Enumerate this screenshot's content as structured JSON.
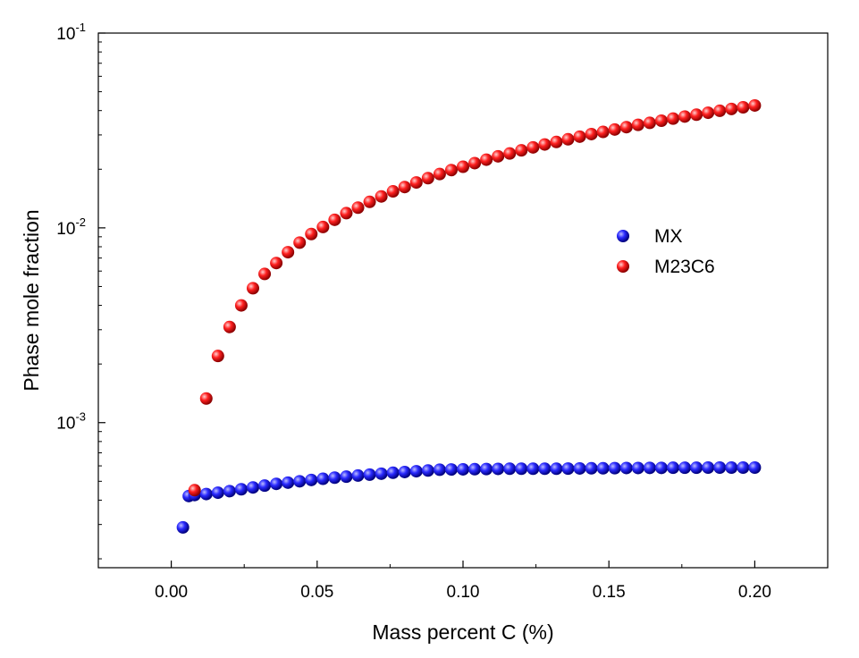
{
  "chart_data": {
    "type": "scatter",
    "xlabel": "Mass percent C (%)",
    "ylabel": "Phase mole fraction",
    "xlim": [
      -0.025,
      0.225
    ],
    "ylim": [
      0.00018,
      0.1
    ],
    "yscale": "log",
    "grid": false,
    "legend_position": "right-center",
    "x_ticks": [
      0.0,
      0.05,
      0.1,
      0.15,
      0.2
    ],
    "x_tick_labels": [
      "0.00",
      "0.05",
      "0.10",
      "0.15",
      "0.20"
    ],
    "y_ticks": [
      0.001,
      0.01,
      0.1
    ],
    "y_tick_labels": [
      {
        "base": "10",
        "exp": "-3"
      },
      {
        "base": "10",
        "exp": "-2"
      },
      {
        "base": "10",
        "exp": "-1"
      }
    ],
    "series": [
      {
        "name": "MX",
        "color": "#1010e0",
        "points": [
          [
            0.004,
            0.00029
          ],
          [
            0.006,
            0.00042
          ],
          [
            0.008,
            0.000425
          ],
          [
            0.012,
            0.00043
          ],
          [
            0.016,
            0.000437
          ],
          [
            0.02,
            0.000445
          ],
          [
            0.024,
            0.000455
          ],
          [
            0.028,
            0.000465
          ],
          [
            0.032,
            0.000475
          ],
          [
            0.036,
            0.000485
          ],
          [
            0.04,
            0.000492
          ],
          [
            0.044,
            0.0005
          ],
          [
            0.048,
            0.000508
          ],
          [
            0.052,
            0.000515
          ],
          [
            0.056,
            0.000522
          ],
          [
            0.06,
            0.000528
          ],
          [
            0.064,
            0.000535
          ],
          [
            0.068,
            0.000541
          ],
          [
            0.072,
            0.000547
          ],
          [
            0.076,
            0.000553
          ],
          [
            0.08,
            0.000558
          ],
          [
            0.084,
            0.000563
          ],
          [
            0.088,
            0.000568
          ],
          [
            0.092,
            0.000573
          ],
          [
            0.096,
            0.000575
          ],
          [
            0.1,
            0.000576
          ],
          [
            0.104,
            0.000577
          ],
          [
            0.108,
            0.000578
          ],
          [
            0.112,
            0.000579
          ],
          [
            0.116,
            0.00058
          ],
          [
            0.12,
            0.00058
          ],
          [
            0.124,
            0.00058
          ],
          [
            0.128,
            0.00058
          ],
          [
            0.132,
            0.00058
          ],
          [
            0.136,
            0.000581
          ],
          [
            0.14,
            0.000582
          ],
          [
            0.144,
            0.000583
          ],
          [
            0.148,
            0.000583
          ],
          [
            0.152,
            0.000584
          ],
          [
            0.156,
            0.000585
          ],
          [
            0.16,
            0.000585
          ],
          [
            0.164,
            0.000586
          ],
          [
            0.168,
            0.000586
          ],
          [
            0.172,
            0.000587
          ],
          [
            0.176,
            0.000587
          ],
          [
            0.18,
            0.000587
          ],
          [
            0.184,
            0.000588
          ],
          [
            0.188,
            0.000588
          ],
          [
            0.192,
            0.000588
          ],
          [
            0.196,
            0.000588
          ],
          [
            0.2,
            0.000588
          ]
        ]
      },
      {
        "name": "M23C6",
        "color": "#e01010",
        "points": [
          [
            0.008,
            0.00045
          ],
          [
            0.012,
            0.00133
          ],
          [
            0.016,
            0.0022
          ],
          [
            0.02,
            0.0031
          ],
          [
            0.024,
            0.004
          ],
          [
            0.028,
            0.0049
          ],
          [
            0.032,
            0.0058
          ],
          [
            0.036,
            0.0066
          ],
          [
            0.04,
            0.0075
          ],
          [
            0.044,
            0.0084
          ],
          [
            0.048,
            0.0093
          ],
          [
            0.052,
            0.0101
          ],
          [
            0.056,
            0.011
          ],
          [
            0.06,
            0.0119
          ],
          [
            0.064,
            0.0127
          ],
          [
            0.068,
            0.0136
          ],
          [
            0.072,
            0.0145
          ],
          [
            0.076,
            0.0154
          ],
          [
            0.08,
            0.0162
          ],
          [
            0.084,
            0.0171
          ],
          [
            0.088,
            0.018
          ],
          [
            0.092,
            0.0189
          ],
          [
            0.096,
            0.0198
          ],
          [
            0.1,
            0.0206
          ],
          [
            0.104,
            0.0215
          ],
          [
            0.108,
            0.0224
          ],
          [
            0.112,
            0.0233
          ],
          [
            0.116,
            0.0241
          ],
          [
            0.12,
            0.025
          ],
          [
            0.124,
            0.0259
          ],
          [
            0.128,
            0.0268
          ],
          [
            0.132,
            0.0276
          ],
          [
            0.136,
            0.0285
          ],
          [
            0.14,
            0.0294
          ],
          [
            0.144,
            0.0303
          ],
          [
            0.148,
            0.0311
          ],
          [
            0.152,
            0.032
          ],
          [
            0.156,
            0.0329
          ],
          [
            0.16,
            0.0338
          ],
          [
            0.164,
            0.0346
          ],
          [
            0.168,
            0.0355
          ],
          [
            0.172,
            0.0364
          ],
          [
            0.176,
            0.0373
          ],
          [
            0.18,
            0.0381
          ],
          [
            0.184,
            0.039
          ],
          [
            0.188,
            0.0399
          ],
          [
            0.192,
            0.0408
          ],
          [
            0.196,
            0.0416
          ],
          [
            0.2,
            0.0425
          ]
        ]
      }
    ]
  }
}
